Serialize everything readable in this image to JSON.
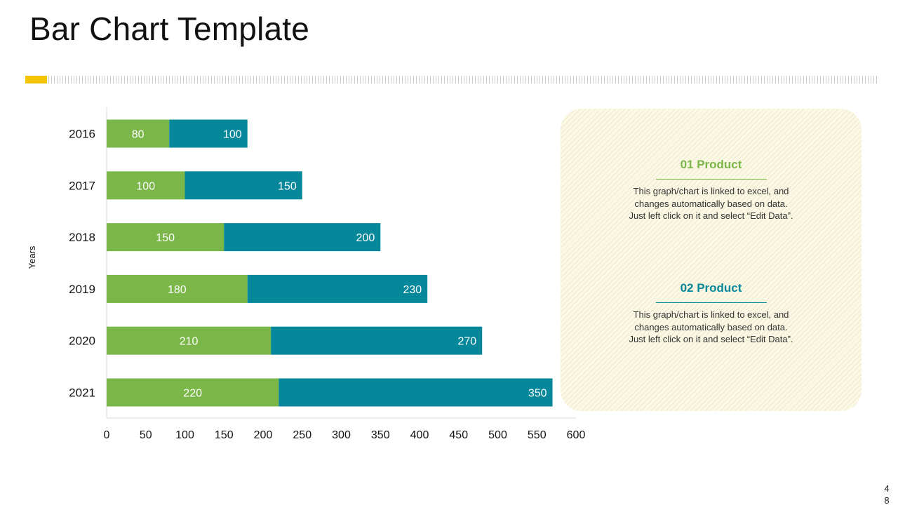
{
  "slide": {
    "title": "Bar Chart Template",
    "page_number": "48",
    "accent_color": "#f5c400"
  },
  "panel": {
    "products": [
      {
        "title": "01 Product",
        "text": "This graph/chart is linked to excel, and changes automatically based on data. Just left click on it and select “Edit Data”.",
        "color": "#7ab648"
      },
      {
        "title": "02 Product",
        "text": "This graph/chart is linked to excel, and changes automatically based on data. Just left click on it and select “Edit Data”.",
        "color": "#06889a"
      }
    ]
  },
  "chart_data": {
    "type": "bar",
    "orientation": "horizontal",
    "stacked": true,
    "title": "",
    "xlabel": "",
    "ylabel": "Years",
    "categories": [
      "2016",
      "2017",
      "2018",
      "2019",
      "2020",
      "2021"
    ],
    "series": [
      {
        "name": "01 Product",
        "color": "#7ab648",
        "values": [
          80,
          100,
          150,
          180,
          210,
          220
        ]
      },
      {
        "name": "02 Product",
        "color": "#06889a",
        "values": [
          100,
          150,
          200,
          230,
          270,
          350
        ]
      }
    ],
    "xlim": [
      0,
      600
    ],
    "xticks": [
      0,
      50,
      100,
      150,
      200,
      250,
      300,
      350,
      400,
      450,
      500,
      550,
      600
    ],
    "grid": false,
    "legend": "none"
  }
}
